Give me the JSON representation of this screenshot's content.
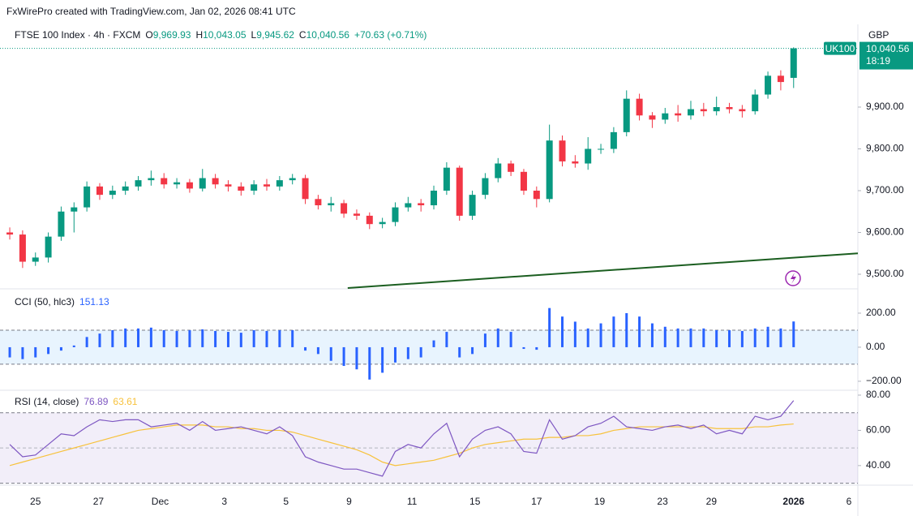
{
  "header": {
    "credit": "FxWirePro created with TradingView.com, Jan 02, 2026 08:41 UTC",
    "currency": "GBP",
    "price_tag": {
      "symbol": "UK100",
      "price": "10,040.56",
      "countdown": "18:19"
    }
  },
  "chart_data": [
    {
      "type": "candlestick",
      "title": "FTSE 100 Index · 4h · FXCM",
      "ohlc_legend": [
        {
          "key": "O",
          "value": "9,969.93"
        },
        {
          "key": "H",
          "value": "10,043.05"
        },
        {
          "key": "L",
          "value": "9,945.62"
        },
        {
          "key": "C",
          "value": "10,040.56"
        }
      ],
      "change": "+70.63 (+0.71%)",
      "up_color": "#089981",
      "down_color": "#f23645",
      "open": [
        9600,
        9595,
        9530,
        9540,
        9590,
        9650,
        9660,
        9710,
        9690,
        9700,
        9710,
        9725,
        9730,
        9715,
        9720,
        9705,
        9730,
        9715,
        9710,
        9700,
        9715,
        9710,
        9725,
        9730,
        9680,
        9665,
        9670,
        9645,
        9640,
        9620,
        9625,
        9660,
        9670,
        9665,
        9700,
        9755,
        9640,
        9690,
        9730,
        9765,
        9745,
        9700,
        9680,
        9820,
        9770,
        9765,
        9800,
        9800,
        9840,
        9920,
        9880,
        9870,
        9885,
        9880,
        9895,
        9890,
        9900,
        9895,
        9890,
        9930,
        9975,
        9969.93
      ],
      "high": [
        9612,
        9605,
        9552,
        9600,
        9662,
        9672,
        9722,
        9718,
        9712,
        9722,
        9735,
        9748,
        9742,
        9730,
        9728,
        9752,
        9740,
        9725,
        9720,
        9725,
        9728,
        9735,
        9740,
        9738,
        9690,
        9685,
        9678,
        9655,
        9648,
        9635,
        9672,
        9685,
        9680,
        9712,
        9768,
        9760,
        9700,
        9742,
        9778,
        9772,
        9752,
        9710,
        9858,
        9832,
        9785,
        9828,
        9812,
        9852,
        9940,
        9932,
        9888,
        9898,
        9905,
        9915,
        9910,
        9925,
        9910,
        9905,
        9942,
        9985,
        9988,
        10043.05
      ],
      "low": [
        9583,
        9515,
        9520,
        9528,
        9580,
        9600,
        9650,
        9678,
        9680,
        9690,
        9700,
        9712,
        9705,
        9705,
        9695,
        9698,
        9705,
        9698,
        9688,
        9690,
        9700,
        9700,
        9715,
        9668,
        9655,
        9650,
        9635,
        9630,
        9608,
        9610,
        9615,
        9650,
        9650,
        9655,
        9690,
        9628,
        9630,
        9680,
        9720,
        9735,
        9690,
        9660,
        9672,
        9758,
        9755,
        9750,
        9788,
        9790,
        9830,
        9868,
        9850,
        9860,
        9865,
        9870,
        9878,
        9880,
        9885,
        9875,
        9882,
        9920,
        9940,
        9945.62
      ],
      "close": [
        9595,
        9530,
        9540,
        9590,
        9650,
        9660,
        9710,
        9690,
        9700,
        9710,
        9725,
        9730,
        9715,
        9720,
        9705,
        9730,
        9715,
        9710,
        9700,
        9715,
        9710,
        9725,
        9730,
        9680,
        9665,
        9670,
        9645,
        9640,
        9620,
        9625,
        9660,
        9670,
        9665,
        9700,
        9755,
        9640,
        9690,
        9730,
        9765,
        9745,
        9700,
        9680,
        9820,
        9770,
        9765,
        9800,
        9800,
        9840,
        9920,
        9880,
        9870,
        9885,
        9880,
        9895,
        9890,
        9900,
        9895,
        9890,
        9930,
        9975,
        9960,
        10040.56
      ],
      "trendline": {
        "x": [
          26.3,
          66.0
        ],
        "y": [
          9467,
          9550
        ],
        "color": "#1b5e20"
      },
      "xlim": [
        -0.76,
        66.0
      ],
      "xticks": [
        {
          "value": 2.0,
          "label": "25"
        },
        {
          "value": 6.9,
          "label": "27"
        },
        {
          "value": 11.7,
          "label": "Dec"
        },
        {
          "value": 16.7,
          "label": "3"
        },
        {
          "value": 21.5,
          "label": "5"
        },
        {
          "value": 26.4,
          "label": "9"
        },
        {
          "value": 31.3,
          "label": "11"
        },
        {
          "value": 36.2,
          "label": "15"
        },
        {
          "value": 41.0,
          "label": "17"
        },
        {
          "value": 45.9,
          "label": "19"
        },
        {
          "value": 50.8,
          "label": "23"
        },
        {
          "value": 54.6,
          "label": "29"
        },
        {
          "value": 61.0,
          "label": "2026"
        },
        {
          "value": 65.3,
          "label": "6"
        }
      ],
      "ylim": [
        9467,
        10098
      ],
      "yticks": [
        {
          "value": 9500,
          "label": "9,500.00"
        },
        {
          "value": 9600,
          "label": "9,600.00"
        },
        {
          "value": 9700,
          "label": "9,700.00"
        },
        {
          "value": 9800,
          "label": "9,800.00"
        },
        {
          "value": 9900,
          "label": "9,900.00"
        }
      ],
      "grid": false
    },
    {
      "type": "bar",
      "title": "CCI (50, hlc3)",
      "color": "#2962ff",
      "values": [
        -60,
        -70,
        -60,
        -40,
        -20,
        10,
        60,
        80,
        100,
        110,
        110,
        115,
        100,
        95,
        100,
        105,
        95,
        90,
        85,
        100,
        95,
        100,
        100,
        -20,
        -40,
        -80,
        -110,
        -130,
        -190,
        -150,
        -90,
        -70,
        -60,
        40,
        90,
        -60,
        -40,
        80,
        110,
        90,
        -10,
        -15,
        230,
        180,
        150,
        110,
        140,
        180,
        200,
        180,
        140,
        120,
        110,
        110,
        110,
        100,
        100,
        95,
        110,
        120,
        110,
        151.13
      ],
      "band": [
        -100,
        100
      ],
      "ylim": [
        -248,
        338
      ],
      "yticks": [
        {
          "value": -200,
          "label": "−200.00"
        },
        {
          "value": 0,
          "label": "0.00"
        },
        {
          "value": 200,
          "label": "200.00"
        }
      ]
    },
    {
      "type": "line",
      "title": "RSI (14, close)",
      "series": [
        {
          "color": "#7e57c2",
          "values": [
            52,
            45,
            46,
            52,
            58,
            57,
            62,
            66,
            65,
            66,
            66,
            62,
            63,
            64,
            60,
            65,
            60,
            61,
            62,
            60,
            58,
            62,
            57,
            45,
            42,
            40,
            38,
            38,
            36,
            34,
            48,
            52,
            50,
            58,
            64,
            45,
            55,
            60,
            62,
            58,
            48,
            47,
            66,
            55,
            57,
            62,
            64,
            68,
            62,
            61,
            60,
            62,
            63,
            61,
            63,
            58,
            60,
            58,
            68,
            66,
            68,
            76.89
          ]
        },
        {
          "color": "#f7c23c",
          "values": [
            40,
            42,
            44,
            46,
            48,
            50,
            52,
            54,
            56,
            58,
            60,
            61,
            62,
            63,
            63,
            63,
            62,
            62,
            61,
            61,
            60,
            60,
            59,
            57,
            55,
            53,
            51,
            49,
            46,
            42,
            40,
            41,
            42,
            43,
            45,
            47,
            50,
            52,
            53,
            54,
            55,
            55,
            56,
            56,
            57,
            57,
            58,
            60,
            61,
            62,
            62,
            62,
            62,
            62,
            62,
            61,
            61,
            61,
            62,
            62,
            63,
            63.61
          ]
        }
      ],
      "band": [
        30,
        70
      ],
      "midline": 50,
      "ylim": [
        29.8,
        82.3
      ],
      "yticks": [
        {
          "value": 40,
          "label": "40.00"
        },
        {
          "value": 60,
          "label": "60.00"
        },
        {
          "value": 80,
          "label": "80.00"
        }
      ]
    }
  ]
}
